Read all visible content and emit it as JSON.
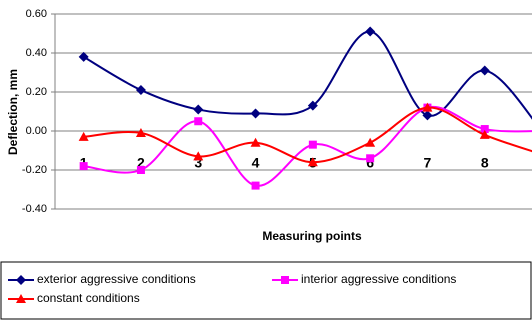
{
  "chart_data": {
    "type": "line",
    "x_label": "Measuring points",
    "y_label": "Deflection, mm",
    "categories": [
      "1",
      "2",
      "3",
      "4",
      "5",
      "6",
      "7",
      "8",
      null
    ],
    "series": [
      {
        "name": "exterior aggressive conditions",
        "color": "#000080",
        "marker": "diamond",
        "values": [
          0.38,
          0.21,
          0.11,
          0.09,
          0.13,
          0.51,
          0.08,
          0.31,
          0.0
        ]
      },
      {
        "name": "interior aggressive conditions",
        "color": "#ff00ff",
        "marker": "square",
        "values": [
          -0.18,
          -0.2,
          0.05,
          -0.28,
          -0.07,
          -0.14,
          0.12,
          0.01,
          0.0
        ]
      },
      {
        "name": "constant conditions",
        "color": "#ff0000",
        "marker": "triangle",
        "values": [
          -0.03,
          -0.01,
          -0.13,
          -0.06,
          -0.16,
          -0.06,
          0.12,
          -0.02,
          -0.12
        ]
      }
    ],
    "ylim": [
      -0.4,
      0.6
    ],
    "yticks": [
      {
        "value": -0.4,
        "label": "-0.40"
      },
      {
        "value": -0.2,
        "label": "-0.20"
      },
      {
        "value": 0,
        "label": "0.00"
      },
      {
        "value": 0.2,
        "label": "0.20"
      },
      {
        "value": 0.4,
        "label": "0.40"
      },
      {
        "value": 0.6,
        "label": "0.60"
      }
    ],
    "grid": true,
    "smooth": true,
    "legend": "bottom"
  }
}
